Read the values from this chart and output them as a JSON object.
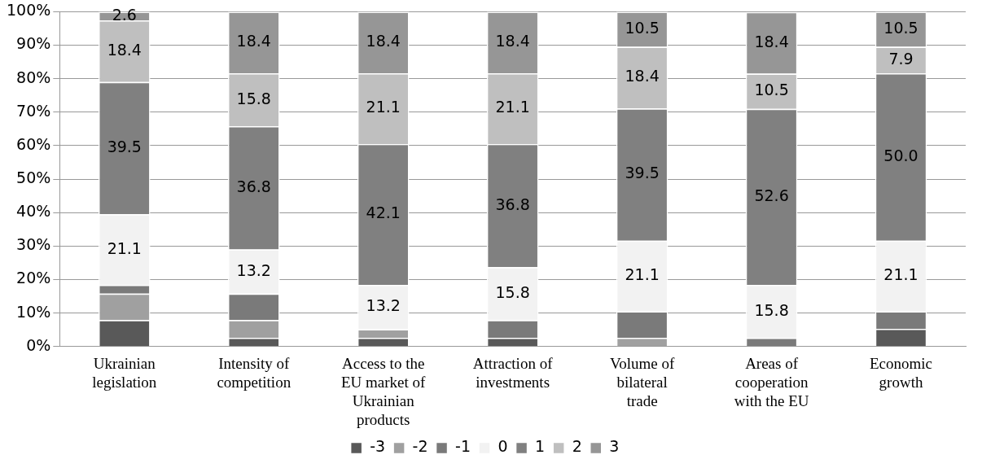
{
  "chart_data": {
    "type": "bar",
    "stacked": true,
    "categories": [
      "Ukrainian legislation",
      "Intensity of competition",
      "Access to the EU market of Ukrainian products",
      "Attraction of investments",
      "Volume of bilateral trade",
      "Areas of cooperation with the EU",
      "Economic growth"
    ],
    "ylim": [
      0,
      100
    ],
    "yticks": [
      {
        "value": 0,
        "label": "0%"
      },
      {
        "value": 10,
        "label": "10%"
      },
      {
        "value": 20,
        "label": "20%"
      },
      {
        "value": 30,
        "label": "30%"
      },
      {
        "value": 40,
        "label": "40%"
      },
      {
        "value": 50,
        "label": "50%"
      },
      {
        "value": 60,
        "label": "60%"
      },
      {
        "value": 70,
        "label": "70%"
      },
      {
        "value": 80,
        "label": "80%"
      },
      {
        "value": 90,
        "label": "90%"
      },
      {
        "value": 100,
        "label": "100%"
      }
    ],
    "grid": "y",
    "legend": "bottom",
    "series": [
      {
        "name": "-3",
        "color": "#595959",
        "values": [
          7.9,
          2.6,
          2.6,
          2.6,
          0,
          0,
          5.3
        ]
      },
      {
        "name": "-2",
        "color": "#a0a0a0",
        "values": [
          7.9,
          5.3,
          2.6,
          0,
          2.6,
          0,
          0
        ]
      },
      {
        "name": "-1",
        "color": "#7a7a7a",
        "values": [
          2.6,
          7.9,
          0,
          5.3,
          7.9,
          2.6,
          5.2
        ]
      },
      {
        "name": "0",
        "color": "#f2f2f2",
        "values": [
          21.1,
          13.2,
          13.2,
          15.8,
          21.1,
          15.8,
          21.1
        ],
        "value_labels": [
          "21.1",
          "13.2",
          "13.2",
          "15.8",
          "21.1",
          "15.8",
          "21.1"
        ]
      },
      {
        "name": "1",
        "color": "#808080",
        "values": [
          39.5,
          36.8,
          42.1,
          36.8,
          39.5,
          52.6,
          50.0
        ],
        "value_labels": [
          "39.5",
          "36.8",
          "42.1",
          "36.8",
          "39.5",
          "52.6",
          "50.0"
        ]
      },
      {
        "name": "2",
        "color": "#bfbfbf",
        "values": [
          18.4,
          15.8,
          21.1,
          21.1,
          18.4,
          10.5,
          7.9
        ],
        "value_labels": [
          "18.4",
          "15.8",
          "21.1",
          "21.1",
          "18.4",
          "10.5",
          "7.9"
        ]
      },
      {
        "name": "3",
        "color": "#969696",
        "values": [
          2.6,
          18.4,
          18.4,
          18.4,
          10.5,
          18.4,
          10.5
        ],
        "value_labels": [
          "2.6",
          "18.4",
          "18.4",
          "18.4",
          "10.5",
          "18.4",
          "10.5"
        ]
      }
    ]
  }
}
